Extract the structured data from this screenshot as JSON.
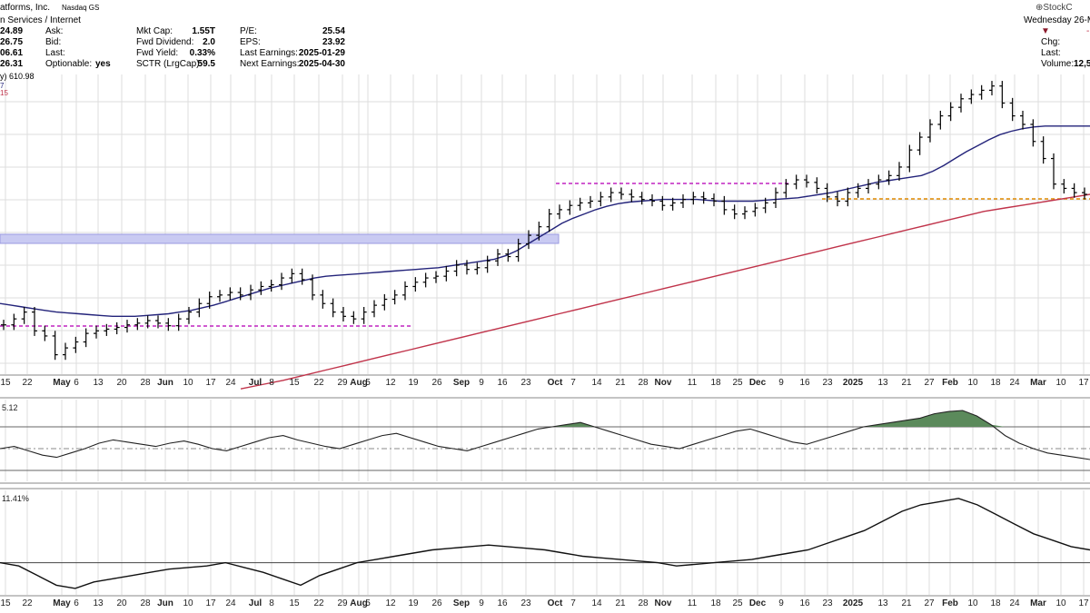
{
  "header": {
    "company": "atforms, Inc.",
    "exchange": "Nasdaq GS",
    "sector": "n Services / Internet",
    "logo": "⊕StockC",
    "date": "Wednesday 26-M",
    "left_values": [
      "24.89",
      "26.75",
      "06.61",
      "26.31"
    ],
    "left_labels": [
      "Ask:",
      "Bid:",
      "Last:",
      "Optionable:"
    ],
    "optionable": "yes",
    "mid_labels": [
      "Mkt Cap:",
      "Fwd Dividend:",
      "Fwd Yield:",
      "SCTR (LrgCap):"
    ],
    "mid_values": [
      "1.55T",
      "2.0",
      "0.33%",
      "59.5"
    ],
    "right_labels": [
      "P/E:",
      "EPS:",
      "Last Earnings:",
      "Next Earnings:"
    ],
    "right_values": [
      "25.54",
      "23.92",
      "2025-01-29",
      "2025-04-30"
    ],
    "far_labels": [
      "Chg:",
      "Last:",
      "Volume:"
    ],
    "volume_value": "12,5",
    "price_legend": "y) 610.98",
    "ma_legend_1": "7",
    "ma_legend_2": "15",
    "rsi_label": "5.12",
    "pct_label": "11.41%"
  },
  "chart_data": {
    "type": "line",
    "x_ticks": [
      "15",
      "22",
      "May",
      "6",
      "13",
      "20",
      "28",
      "Jun",
      "10",
      "17",
      "24",
      "Jul",
      "8",
      "15",
      "22",
      "29",
      "Aug",
      "5",
      "12",
      "19",
      "26",
      "Sep",
      "9",
      "16",
      "23",
      "Oct",
      "7",
      "14",
      "21",
      "28",
      "Nov",
      "11",
      "18",
      "25",
      "Dec",
      "9",
      "16",
      "23",
      "2025",
      "13",
      "21",
      "27",
      "Feb",
      "10",
      "18",
      "24",
      "Mar",
      "10",
      "17"
    ],
    "bold_ticks": [
      "May",
      "Jun",
      "Jul",
      "Aug",
      "Sep",
      "Oct",
      "Nov",
      "Dec",
      "2025",
      "Feb",
      "Mar"
    ],
    "price_series": [
      445,
      452,
      460,
      438,
      432,
      410,
      418,
      425,
      435,
      438,
      440,
      442,
      445,
      447,
      450,
      447,
      444,
      452,
      460,
      470,
      478,
      480,
      483,
      480,
      486,
      490,
      492,
      500,
      505,
      498,
      480,
      470,
      460,
      455,
      452,
      460,
      468,
      475,
      480,
      490,
      495,
      500,
      502,
      508,
      515,
      510,
      512,
      520,
      528,
      525,
      540,
      550,
      560,
      575,
      580,
      585,
      588,
      590,
      595,
      600,
      598,
      595,
      592,
      590,
      585,
      588,
      592,
      595,
      593,
      590,
      580,
      575,
      578,
      582,
      588,
      600,
      610,
      615,
      612,
      605,
      595,
      590,
      600,
      605,
      610,
      615,
      620,
      630,
      650,
      665,
      680,
      690,
      700,
      710,
      715,
      720,
      725,
      705,
      690,
      680,
      660,
      640,
      610,
      605,
      600,
      598
    ],
    "ma_short": [
      470,
      468,
      466,
      464,
      462,
      460,
      459,
      458,
      457,
      456,
      455,
      455,
      455,
      456,
      457,
      458,
      460,
      462,
      465,
      468,
      472,
      476,
      480,
      484,
      488,
      491,
      494,
      497,
      500,
      502,
      503,
      504,
      505,
      506,
      507,
      508,
      509,
      510,
      511,
      512,
      514,
      516,
      518,
      520,
      522,
      526,
      532,
      540,
      548,
      556,
      564,
      570,
      575,
      580,
      584,
      587,
      589,
      590,
      591,
      592,
      592,
      592,
      592,
      591,
      590,
      590,
      590,
      590,
      591,
      592,
      593,
      594,
      596,
      598,
      600,
      603,
      606,
      609,
      612,
      614,
      616,
      618,
      620,
      625,
      632,
      640,
      648,
      655,
      662,
      668,
      672,
      675,
      677,
      678,
      678,
      678,
      678,
      678
    ],
    "ma_long": [
      370,
      375,
      380,
      386,
      392,
      398,
      404,
      410,
      416,
      422,
      428,
      434,
      440,
      446,
      452,
      458,
      464,
      470,
      476,
      482,
      488,
      494,
      500,
      506,
      512,
      518,
      524,
      530,
      536,
      542,
      548,
      554,
      560,
      566,
      572,
      578,
      582,
      586,
      590,
      594,
      598
    ],
    "rsi": [
      50,
      52,
      48,
      44,
      42,
      46,
      50,
      55,
      58,
      56,
      54,
      52,
      55,
      57,
      54,
      50,
      48,
      52,
      56,
      60,
      62,
      58,
      55,
      52,
      50,
      54,
      58,
      62,
      64,
      60,
      56,
      52,
      50,
      48,
      52,
      56,
      60,
      64,
      68,
      70,
      72,
      74,
      70,
      66,
      62,
      58,
      54,
      52,
      50,
      54,
      58,
      62,
      66,
      68,
      64,
      60,
      56,
      54,
      58,
      62,
      66,
      70,
      72,
      74,
      76,
      78,
      82,
      84,
      85,
      80,
      72,
      62,
      55,
      50,
      46,
      44,
      42,
      40
    ],
    "pct": [
      0,
      -2,
      -8,
      -14,
      -16,
      -12,
      -10,
      -8,
      -6,
      -4,
      -3,
      -2,
      0,
      -3,
      -6,
      -10,
      -14,
      -8,
      -4,
      0,
      2,
      4,
      6,
      8,
      9,
      10,
      11,
      10,
      9,
      8,
      6,
      4,
      3,
      2,
      1,
      0,
      -2,
      -1,
      0,
      1,
      2,
      4,
      6,
      8,
      12,
      16,
      20,
      26,
      32,
      36,
      38,
      40,
      36,
      30,
      24,
      18,
      14,
      10,
      8
    ],
    "rsi_range": [
      20,
      95
    ],
    "pct_range": [
      -20,
      45
    ]
  },
  "colors": {
    "price": "#000000",
    "ma_short": "#23237a",
    "ma_long": "#c0334a",
    "resist_band": "#c9caf2",
    "magenta": "#c023c0",
    "orange": "#e08a00",
    "grid": "#dddddd",
    "rsi_fill": "#5b8a5b"
  }
}
